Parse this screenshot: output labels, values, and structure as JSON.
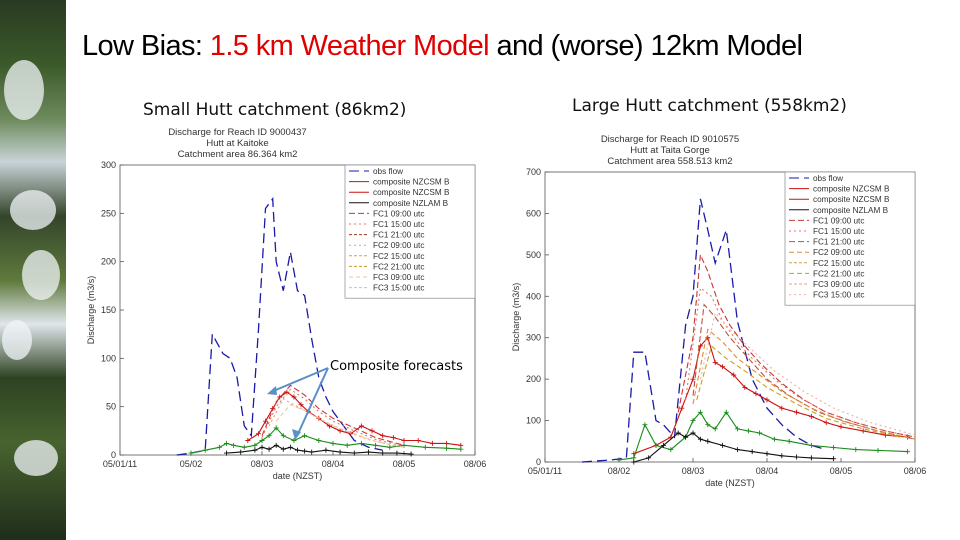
{
  "slide": {
    "title_prefix": "Low Bias: ",
    "title_highlight": "1.5 km Weather Model",
    "title_suffix": " and (worse) 12km Model",
    "left_heading": "Small Hutt catchment (86km2)",
    "right_heading": "Large Hutt catchment (558km2)",
    "annotation": "Composite forecasts"
  },
  "chart_data": [
    {
      "type": "line",
      "title": [
        "Discharge for Reach ID 9000437",
        "Hutt at Kaitoke",
        "Catchment area 86.364 km2"
      ],
      "xlabel": "date (NZST)",
      "ylabel": "Discharge (m3/s)",
      "xticks": [
        "05/01/11",
        "05/02",
        "08/03",
        "08/04",
        "08/05",
        "08/06"
      ],
      "yticks": [
        "0",
        "50",
        "100",
        "150",
        "200",
        "250",
        "300"
      ],
      "xlim": [
        0,
        5
      ],
      "ylim": [
        0,
        300
      ],
      "grid": false,
      "legend_position": "top-right",
      "legend": [
        "obs flow",
        "composite NZCSM B",
        "composite NZCSM B",
        "composite NZLAM B",
        "FC1 09:00 utc",
        "FC1 15:00 utc",
        "FC1 21:00 utc",
        "FC2 09:00 utc",
        "FC2 15:00 utc",
        "FC2 21:00 utc",
        "FC3 09:00 utc",
        "FC3 15:00 utc"
      ],
      "series": [
        {
          "name": "obs flow",
          "color": "#1a1aa8",
          "dash": "10,5",
          "marker": "none",
          "x": [
            0.8,
            1.0,
            1.2,
            1.3,
            1.45,
            1.55,
            1.65,
            1.75,
            1.85,
            1.95,
            2.05,
            2.15,
            2.2,
            2.3,
            2.4,
            2.5,
            2.6,
            2.7,
            2.8,
            2.9,
            3.0,
            3.1,
            3.2,
            3.3,
            3.5,
            3.7
          ],
          "y": [
            0,
            2,
            5,
            125,
            105,
            100,
            80,
            30,
            20,
            130,
            255,
            265,
            200,
            170,
            210,
            170,
            165,
            120,
            80,
            60,
            45,
            35,
            25,
            15,
            8,
            5
          ]
        },
        {
          "name": "composite NZCSM B",
          "color": "#cc1111",
          "dash": "none",
          "marker": "plus",
          "x": [
            1.8,
            1.95,
            2.05,
            2.15,
            2.25,
            2.35,
            2.45,
            2.55,
            2.65,
            2.8,
            2.95,
            3.1,
            3.25,
            3.4,
            3.55,
            3.7,
            3.85,
            4.0,
            4.2,
            4.4,
            4.6,
            4.8
          ],
          "y": [
            15,
            22,
            35,
            48,
            60,
            65,
            60,
            52,
            45,
            38,
            30,
            25,
            22,
            30,
            25,
            20,
            18,
            15,
            15,
            12,
            12,
            10
          ]
        },
        {
          "name": "composite NZCSM B",
          "color": "#1a8a1a",
          "dash": "none",
          "marker": "plus",
          "x": [
            1.0,
            1.2,
            1.4,
            1.5,
            1.6,
            1.75,
            1.9,
            2.0,
            2.1,
            2.2,
            2.3,
            2.45,
            2.6,
            2.8,
            3.0,
            3.2,
            3.4,
            3.6,
            3.8,
            4.0,
            4.3,
            4.6,
            4.8
          ],
          "y": [
            2,
            5,
            8,
            12,
            10,
            8,
            10,
            15,
            20,
            28,
            20,
            15,
            20,
            15,
            12,
            10,
            12,
            10,
            8,
            10,
            8,
            7,
            6
          ]
        },
        {
          "name": "composite NZLAM B",
          "color": "#111111",
          "dash": "none",
          "marker": "plus",
          "x": [
            1.5,
            1.7,
            1.9,
            2.0,
            2.1,
            2.2,
            2.3,
            2.4,
            2.5,
            2.6,
            2.7,
            2.9,
            3.1,
            3.3,
            3.5,
            3.7,
            3.9,
            4.1
          ],
          "y": [
            2,
            3,
            5,
            8,
            6,
            10,
            6,
            8,
            5,
            4,
            3,
            5,
            3,
            2,
            3,
            2,
            2,
            1
          ]
        },
        {
          "name": "FC1 09:00 utc",
          "color": "#cc3333",
          "dash": "6,3",
          "marker": "none",
          "x": [
            2.0,
            2.2,
            2.4,
            2.6,
            2.8,
            3.0,
            3.3,
            3.6,
            4.0
          ],
          "y": [
            20,
            55,
            72,
            62,
            48,
            38,
            28,
            18,
            10
          ]
        },
        {
          "name": "FC1 15:00 utc",
          "color": "#dd7766",
          "dash": "2,3",
          "marker": "none",
          "x": [
            2.0,
            2.2,
            2.4,
            2.6,
            2.8,
            3.0,
            3.3,
            3.6,
            4.0
          ],
          "y": [
            18,
            50,
            68,
            58,
            45,
            35,
            25,
            16,
            9
          ]
        },
        {
          "name": "FC2 09:00 utc",
          "color": "#e0a070",
          "dash": "2,3",
          "marker": "none",
          "x": [
            2.1,
            2.3,
            2.5,
            2.7,
            2.9,
            3.2,
            3.5,
            3.9
          ],
          "y": [
            30,
            58,
            50,
            42,
            34,
            24,
            16,
            9
          ]
        },
        {
          "name": "FC3 09:00 utc",
          "color": "#f0c0a8",
          "dash": "4,3",
          "marker": "none",
          "x": [
            2.2,
            2.4,
            2.6,
            2.8,
            3.0,
            3.3,
            3.6,
            4.0
          ],
          "y": [
            35,
            52,
            46,
            38,
            30,
            22,
            14,
            8
          ]
        }
      ]
    },
    {
      "type": "line",
      "title": [
        "Discharge for Reach ID 9010575",
        "Hutt at Taita Gorge",
        "Catchment area 558.513 km2"
      ],
      "xlabel": "date (NZST)",
      "ylabel": "Discharge (m3/s)",
      "xticks": [
        "05/01/11",
        "08/02",
        "08/03",
        "08/04",
        "08/05",
        "08/06"
      ],
      "yticks": [
        "0",
        "100",
        "200",
        "300",
        "400",
        "500",
        "600",
        "700"
      ],
      "xlim": [
        0,
        5
      ],
      "ylim": [
        0,
        700
      ],
      "grid": false,
      "legend_position": "top-right",
      "legend": [
        "obs flow",
        "composite NZCSM B",
        "composite NZCSM B",
        "composite NZLAM B",
        "FC1 09:00 utc",
        "FC1 15:00 utc",
        "FC1 21:00 utc",
        "FC2 09:00 utc",
        "FC2 15:00 utc",
        "FC2 21:00 utc",
        "FC3 09:00 utc",
        "FC3 15:00 utc"
      ],
      "series": [
        {
          "name": "obs flow",
          "color": "#1a1aa8",
          "dash": "10,5",
          "marker": "none",
          "x": [
            0.5,
            0.9,
            1.1,
            1.2,
            1.35,
            1.5,
            1.6,
            1.75,
            1.9,
            2.0,
            2.1,
            2.2,
            2.3,
            2.45,
            2.6,
            2.8,
            3.0,
            3.2,
            3.4,
            3.6,
            3.8
          ],
          "y": [
            0,
            5,
            10,
            265,
            265,
            100,
            90,
            60,
            330,
            400,
            635,
            560,
            480,
            560,
            340,
            200,
            130,
            90,
            60,
            40,
            30
          ]
        },
        {
          "name": "composite NZCSM B",
          "color": "#cc1111",
          "dash": "none",
          "marker": "plus",
          "x": [
            1.2,
            1.5,
            1.7,
            1.85,
            2.0,
            2.1,
            2.2,
            2.3,
            2.4,
            2.55,
            2.7,
            2.85,
            3.0,
            3.2,
            3.4,
            3.6,
            3.8,
            4.0,
            4.3,
            4.6,
            4.9
          ],
          "y": [
            20,
            40,
            60,
            130,
            200,
            280,
            300,
            240,
            230,
            210,
            180,
            165,
            150,
            130,
            120,
            110,
            95,
            85,
            75,
            65,
            60
          ]
        },
        {
          "name": "composite NZCSM B",
          "color": "#1a8a1a",
          "dash": "none",
          "marker": "plus",
          "x": [
            1.0,
            1.2,
            1.35,
            1.5,
            1.7,
            1.9,
            2.0,
            2.1,
            2.2,
            2.3,
            2.45,
            2.6,
            2.75,
            2.9,
            3.1,
            3.3,
            3.6,
            3.9,
            4.2,
            4.5,
            4.9
          ],
          "y": [
            5,
            10,
            90,
            40,
            30,
            60,
            100,
            120,
            90,
            80,
            120,
            80,
            75,
            70,
            55,
            50,
            40,
            35,
            30,
            28,
            25
          ]
        },
        {
          "name": "composite NZLAM B",
          "color": "#111111",
          "dash": "none",
          "marker": "plus",
          "x": [
            1.2,
            1.4,
            1.6,
            1.8,
            1.9,
            2.0,
            2.1,
            2.2,
            2.4,
            2.6,
            2.8,
            3.0,
            3.2,
            3.4,
            3.6,
            3.9
          ],
          "y": [
            0,
            10,
            40,
            70,
            60,
            70,
            55,
            50,
            40,
            30,
            25,
            20,
            15,
            12,
            10,
            8
          ]
        },
        {
          "name": "FC1 09:00 utc",
          "color": "#cc3333",
          "dash": "6,3",
          "marker": "none",
          "x": [
            1.8,
            2.0,
            2.1,
            2.2,
            2.35,
            2.5,
            2.7,
            2.9,
            3.2,
            3.5,
            3.8,
            4.2,
            4.6,
            5.0
          ],
          "y": [
            120,
            300,
            500,
            460,
            380,
            330,
            280,
            240,
            190,
            150,
            120,
            95,
            75,
            60
          ]
        },
        {
          "name": "FC1 15:00 utc",
          "color": "#dd7766",
          "dash": "2,3",
          "marker": "none",
          "x": [
            1.9,
            2.1,
            2.25,
            2.4,
            2.6,
            2.8,
            3.1,
            3.4,
            3.8,
            4.2,
            4.6,
            5.0
          ],
          "y": [
            150,
            420,
            400,
            340,
            290,
            250,
            200,
            160,
            120,
            95,
            75,
            60
          ]
        },
        {
          "name": "FC1 21:00 utc",
          "color": "#bb5533",
          "dash": "6,3",
          "marker": "none",
          "x": [
            2.0,
            2.15,
            2.3,
            2.5,
            2.7,
            3.0,
            3.3,
            3.7,
            4.1,
            4.5,
            5.0
          ],
          "y": [
            160,
            380,
            350,
            300,
            260,
            200,
            160,
            120,
            95,
            75,
            55
          ]
        },
        {
          "name": "FC2 09:00 utc",
          "color": "#e08a40",
          "dash": "5,3",
          "marker": "none",
          "x": [
            2.0,
            2.2,
            2.4,
            2.6,
            2.9,
            3.2,
            3.6,
            4.0,
            4.5,
            5.0
          ],
          "y": [
            140,
            320,
            290,
            250,
            210,
            170,
            130,
            100,
            75,
            55
          ]
        },
        {
          "name": "FC2 21:00 utc",
          "color": "#c8a020",
          "dash": "5,3",
          "marker": "none",
          "x": [
            2.05,
            2.25,
            2.45,
            2.7,
            3.0,
            3.4,
            3.8,
            4.3,
            4.8
          ],
          "y": [
            150,
            280,
            250,
            220,
            180,
            140,
            105,
            80,
            60
          ]
        },
        {
          "name": "FC3 15:00 utc",
          "color": "#f0b0a0",
          "dash": "2,3",
          "marker": "none",
          "x": [
            2.1,
            2.3,
            2.5,
            2.8,
            3.1,
            3.5,
            3.9,
            4.4,
            5.0
          ],
          "y": [
            200,
            360,
            320,
            270,
            220,
            170,
            130,
            95,
            65
          ]
        }
      ]
    }
  ]
}
